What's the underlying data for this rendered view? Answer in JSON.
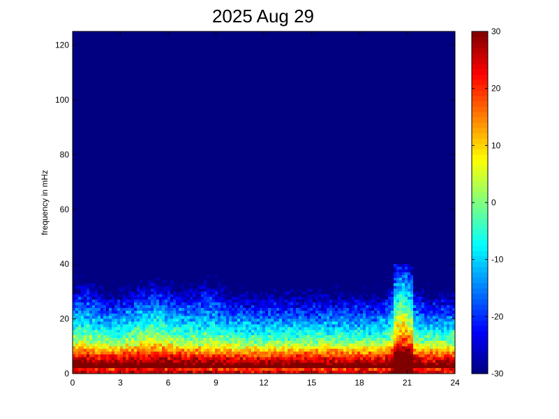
{
  "chart_data": {
    "type": "heatmap",
    "title": "2025 Aug 29",
    "xlabel": "",
    "ylabel": "frequency in mHz",
    "xlim": [
      0,
      24
    ],
    "ylim": [
      0,
      125
    ],
    "x_ticks": [
      "0",
      "3",
      "6",
      "9",
      "12",
      "15",
      "18",
      "21",
      "24"
    ],
    "y_ticks": [
      "0",
      "20",
      "40",
      "60",
      "80",
      "100",
      "120"
    ],
    "colorbar": {
      "colormap": "jet",
      "range": [
        -30,
        30
      ],
      "ticks": [
        "-30",
        "-20",
        "-10",
        "0",
        "10",
        "20",
        "30"
      ]
    },
    "grid": false,
    "legend": "none"
  }
}
